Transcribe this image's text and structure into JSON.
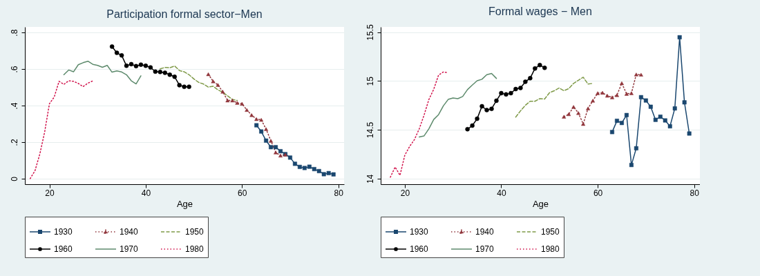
{
  "chart_data": [
    {
      "type": "line",
      "title": "Participation formal sector−Men",
      "xlabel": "Age",
      "xlim": [
        14.9,
        81.2
      ],
      "xticks": [
        20,
        40,
        60,
        80
      ],
      "ylim": [
        -0.031,
        0.831
      ],
      "yticks": [
        0,
        {
          "value": 0.2,
          "label": ".2"
        },
        {
          "value": 0.4,
          "label": ".4"
        },
        {
          "value": 0.6,
          "label": ".6"
        },
        {
          "value": 0.8,
          "label": ".8"
        }
      ],
      "grid": "y",
      "legend": "bottom",
      "series": [
        {
          "name": "1930",
          "color": "#1a476f",
          "marker": "square",
          "line_style": "solid",
          "x": [
            63,
            64,
            65,
            66,
            67,
            68,
            69,
            70,
            71,
            72,
            73,
            74,
            75,
            76,
            77,
            78,
            79
          ],
          "values": [
            0.292,
            0.258,
            0.208,
            0.172,
            0.172,
            0.15,
            0.134,
            0.115,
            0.081,
            0.064,
            0.058,
            0.065,
            0.052,
            0.041,
            0.024,
            0.03,
            0.023
          ]
        },
        {
          "name": "1940",
          "color": "#90353b",
          "marker": "triangle",
          "line_style": "dotted",
          "x": [
            53,
            54,
            55,
            56,
            57,
            58,
            59,
            60,
            61,
            62,
            63,
            64,
            65,
            66,
            67,
            68,
            69
          ],
          "values": [
            0.572,
            0.533,
            0.513,
            0.476,
            0.428,
            0.428,
            0.415,
            0.41,
            0.376,
            0.348,
            0.326,
            0.322,
            0.271,
            0.207,
            0.143,
            0.126,
            0.131
          ]
        },
        {
          "name": "1950",
          "color": "#7f9a48",
          "marker": "none",
          "line_style": "dashed",
          "x": [
            43,
            44,
            45,
            46,
            47,
            48,
            49,
            50,
            51,
            52,
            53,
            54,
            55,
            56,
            57,
            58,
            59
          ],
          "values": [
            0.601,
            0.609,
            0.607,
            0.617,
            0.592,
            0.585,
            0.569,
            0.546,
            0.527,
            0.518,
            0.501,
            0.506,
            0.486,
            0.473,
            0.453,
            0.434,
            0.428
          ]
        },
        {
          "name": "1960",
          "color": "#000000",
          "marker": "circle",
          "line_style": "solid",
          "x": [
            33,
            34,
            35,
            36,
            37,
            38,
            39,
            40,
            41,
            42,
            43,
            44,
            45,
            46,
            47,
            48,
            49
          ],
          "values": [
            0.723,
            0.689,
            0.675,
            0.618,
            0.627,
            0.616,
            0.624,
            0.618,
            0.609,
            0.586,
            0.584,
            0.58,
            0.569,
            0.558,
            0.512,
            0.503,
            0.503
          ]
        },
        {
          "name": "1970",
          "color": "#5d8a6c",
          "marker": "none",
          "line_style": "solid",
          "x": [
            23,
            24,
            25,
            26,
            27,
            28,
            29,
            30,
            31,
            32,
            33,
            34,
            35,
            36,
            37,
            38,
            39
          ],
          "values": [
            0.569,
            0.595,
            0.585,
            0.624,
            0.635,
            0.643,
            0.626,
            0.62,
            0.61,
            0.62,
            0.583,
            0.59,
            0.584,
            0.569,
            0.536,
            0.519,
            0.563
          ]
        },
        {
          "name": "1980",
          "color": "#d1114a",
          "marker": "none",
          "line_style": "dotted",
          "x": [
            16,
            17,
            18,
            19,
            20,
            21,
            22,
            23,
            24,
            25,
            26,
            27,
            28,
            29
          ],
          "values": [
            0,
            0.043,
            0.134,
            0.254,
            0.41,
            0.447,
            0.533,
            0.516,
            0.536,
            0.533,
            0.521,
            0.504,
            0.523,
            0.535
          ]
        }
      ]
    },
    {
      "type": "line",
      "title": "Formal wages − Men",
      "xlabel": "Age",
      "xlim": [
        15.0,
        81.2
      ],
      "xticks": [
        20,
        40,
        60,
        80
      ],
      "ylim": [
        13.943,
        15.553
      ],
      "yticks": [
        14,
        14.5,
        15,
        15.5
      ],
      "grid": "y",
      "legend": "bottom",
      "series": [
        {
          "name": "1930",
          "color": "#1a476f",
          "marker": "square",
          "line_style": "solid",
          "x": [
            63,
            64,
            65,
            66,
            67,
            68,
            69,
            70,
            71,
            72,
            73,
            74,
            75,
            76,
            77,
            78,
            79
          ],
          "values": [
            14.477,
            14.592,
            14.57,
            14.651,
            14.14,
            14.311,
            14.834,
            14.8,
            14.736,
            14.602,
            14.634,
            14.596,
            14.536,
            14.719,
            15.447,
            14.781,
            14.462
          ]
        },
        {
          "name": "1940",
          "color": "#90353b",
          "marker": "triangle",
          "line_style": "dotted",
          "x": [
            53,
            54,
            55,
            56,
            57,
            58,
            59,
            60,
            61,
            62,
            63,
            64,
            65,
            66,
            67,
            68,
            69
          ],
          "values": [
            14.634,
            14.66,
            14.734,
            14.672,
            14.56,
            14.719,
            14.798,
            14.875,
            14.879,
            14.849,
            14.832,
            14.855,
            14.977,
            14.868,
            14.875,
            15.066,
            15.064
          ]
        },
        {
          "name": "1950",
          "color": "#7f9a48",
          "marker": "none",
          "line_style": "dashed",
          "x": [
            43,
            44,
            45,
            46,
            47,
            48,
            49,
            50,
            51,
            52,
            53,
            54,
            55,
            56,
            57,
            58,
            59
          ],
          "values": [
            14.63,
            14.694,
            14.751,
            14.792,
            14.792,
            14.819,
            14.815,
            14.879,
            14.9,
            14.928,
            14.9,
            14.921,
            14.975,
            15.007,
            15.038,
            14.968,
            14.975
          ]
        },
        {
          "name": "1960",
          "color": "#000000",
          "marker": "circle",
          "line_style": "solid",
          "x": [
            33,
            34,
            35,
            36,
            37,
            38,
            39,
            40,
            41,
            42,
            43,
            44,
            45,
            46,
            47,
            48,
            49
          ],
          "values": [
            14.506,
            14.543,
            14.613,
            14.741,
            14.702,
            14.715,
            14.798,
            14.875,
            14.862,
            14.875,
            14.917,
            14.928,
            14.992,
            15.028,
            15.128,
            15.162,
            15.134
          ]
        },
        {
          "name": "1970",
          "color": "#5d8a6c",
          "marker": "none",
          "line_style": "solid",
          "x": [
            23,
            24,
            25,
            26,
            27,
            28,
            29,
            30,
            31,
            32,
            33,
            34,
            35,
            36,
            37,
            38,
            39
          ],
          "values": [
            14.426,
            14.438,
            14.511,
            14.606,
            14.655,
            14.745,
            14.811,
            14.826,
            14.819,
            14.841,
            14.911,
            14.958,
            15.002,
            15.017,
            15.064,
            15.077,
            15.026
          ]
        },
        {
          "name": "1980",
          "color": "#d1114a",
          "marker": "none",
          "line_style": "dotted",
          "x": [
            17,
            18,
            19,
            20,
            21,
            22,
            23,
            24,
            25,
            26,
            27,
            28,
            29
          ],
          "values": [
            14.015,
            14.119,
            14.034,
            14.24,
            14.33,
            14.4,
            14.511,
            14.651,
            14.811,
            14.915,
            15.06,
            15.092,
            15.085
          ]
        }
      ]
    }
  ]
}
